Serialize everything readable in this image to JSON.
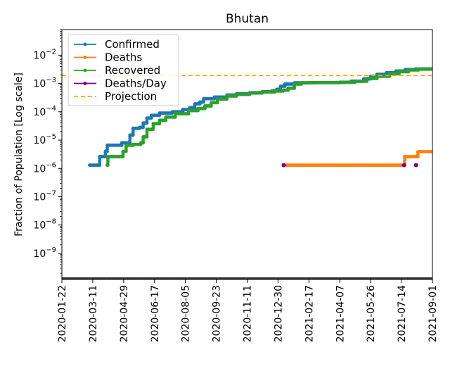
{
  "chart_data": {
    "type": "line",
    "title": "Bhutan",
    "ylabel": "Fraction of Population [Log scale]",
    "xlabel": "",
    "yscale": "log",
    "xlim": [
      "2020-01-22",
      "2021-09-01"
    ],
    "ylim": [
      1.2e-10,
      0.08
    ],
    "legend_position": "top-left",
    "x_ticks": [
      "2020-01-22",
      "2020-03-11",
      "2020-04-29",
      "2020-06-17",
      "2020-08-05",
      "2020-09-23",
      "2020-11-11",
      "2020-12-30",
      "2021-02-17",
      "2021-04-07",
      "2021-05-26",
      "2021-07-14",
      "2021-09-01"
    ],
    "y_ticks": [
      {
        "value": 1e-09,
        "base": "10",
        "exp": "−9"
      },
      {
        "value": 1e-08,
        "base": "10",
        "exp": "−8"
      },
      {
        "value": 1e-07,
        "base": "10",
        "exp": "−7"
      },
      {
        "value": 1e-06,
        "base": "10",
        "exp": "−6"
      },
      {
        "value": 1e-05,
        "base": "10",
        "exp": "−5"
      },
      {
        "value": 0.0001,
        "base": "10",
        "exp": "−4"
      },
      {
        "value": 0.001,
        "base": "10",
        "exp": "−3"
      },
      {
        "value": 0.01,
        "base": "10",
        "exp": "−2"
      }
    ],
    "series": [
      {
        "name": "Confirmed",
        "color": "#1f77b4",
        "points": [
          [
            "2020-03-06",
            1.3e-06
          ],
          [
            "2020-03-20",
            1.3e-06
          ],
          [
            "2020-03-22",
            2.6e-06
          ],
          [
            "2020-03-28",
            2.6e-06
          ],
          [
            "2020-03-31",
            4e-06
          ],
          [
            "2020-04-03",
            6.6e-06
          ],
          [
            "2020-04-23",
            6.6e-06
          ],
          [
            "2020-04-26",
            8e-06
          ],
          [
            "2020-05-05",
            8e-06
          ],
          [
            "2020-05-09",
            1.5e-05
          ],
          [
            "2020-05-14",
            2.6e-05
          ],
          [
            "2020-05-24",
            2.8e-05
          ],
          [
            "2020-05-30",
            4e-05
          ],
          [
            "2020-06-05",
            6e-05
          ],
          [
            "2020-06-12",
            7.5e-05
          ],
          [
            "2020-06-25",
            9e-05
          ],
          [
            "2020-07-15",
            0.0001
          ],
          [
            "2020-08-01",
            0.00012
          ],
          [
            "2020-08-12",
            0.00014
          ],
          [
            "2020-08-20",
            0.00019
          ],
          [
            "2020-08-28",
            0.00022
          ],
          [
            "2020-09-03",
            0.00029
          ],
          [
            "2020-09-20",
            0.00033
          ],
          [
            "2020-10-10",
            0.00039
          ],
          [
            "2020-10-25",
            0.00043
          ],
          [
            "2020-11-15",
            0.00047
          ],
          [
            "2020-12-05",
            0.00051
          ],
          [
            "2020-12-20",
            0.00055
          ],
          [
            "2020-12-28",
            0.00062
          ],
          [
            "2021-01-03",
            0.0008
          ],
          [
            "2021-01-10",
            0.00095
          ],
          [
            "2021-01-25",
            0.00105
          ],
          [
            "2021-02-20",
            0.00107
          ],
          [
            "2021-04-07",
            0.0011
          ],
          [
            "2021-04-25",
            0.0012
          ],
          [
            "2021-05-15",
            0.00145
          ],
          [
            "2021-05-26",
            0.0018
          ],
          [
            "2021-06-05",
            0.0021
          ],
          [
            "2021-06-20",
            0.0024
          ],
          [
            "2021-07-05",
            0.00275
          ],
          [
            "2021-07-20",
            0.0031
          ],
          [
            "2021-08-05",
            0.00325
          ],
          [
            "2021-09-01",
            0.00335
          ]
        ]
      },
      {
        "name": "Deaths",
        "color": "#ff7f0e",
        "points": [
          [
            "2021-01-08",
            1.3e-06
          ],
          [
            "2021-07-18",
            1.3e-06
          ],
          [
            "2021-07-19",
            2.6e-06
          ],
          [
            "2021-08-06",
            2.6e-06
          ],
          [
            "2021-08-09",
            3.9e-06
          ],
          [
            "2021-09-01",
            3.9e-06
          ]
        ]
      },
      {
        "name": "Recovered",
        "color": "#2ca02c",
        "points": [
          [
            "2020-04-03",
            1.3e-06
          ],
          [
            "2020-04-04",
            2.6e-06
          ],
          [
            "2020-04-25",
            2.6e-06
          ],
          [
            "2020-04-28",
            4e-06
          ],
          [
            "2020-05-03",
            6.6e-06
          ],
          [
            "2020-05-14",
            7e-06
          ],
          [
            "2020-05-26",
            8e-06
          ],
          [
            "2020-05-30",
            1.3e-05
          ],
          [
            "2020-06-05",
            2.4e-05
          ],
          [
            "2020-06-15",
            3.8e-05
          ],
          [
            "2020-06-25",
            5e-05
          ],
          [
            "2020-07-05",
            6.5e-05
          ],
          [
            "2020-07-20",
            8.5e-05
          ],
          [
            "2020-08-10",
            0.00011
          ],
          [
            "2020-08-25",
            0.00013
          ],
          [
            "2020-09-05",
            0.00016
          ],
          [
            "2020-09-15",
            0.00021
          ],
          [
            "2020-09-25",
            0.00028
          ],
          [
            "2020-10-10",
            0.00036
          ],
          [
            "2020-10-25",
            0.00041
          ],
          [
            "2020-11-15",
            0.00046
          ],
          [
            "2020-12-05",
            0.0005
          ],
          [
            "2020-12-25",
            0.00054
          ],
          [
            "2021-01-07",
            0.00058
          ],
          [
            "2021-01-15",
            0.00068
          ],
          [
            "2021-01-25",
            0.00095
          ],
          [
            "2021-02-05",
            0.00105
          ],
          [
            "2021-03-01",
            0.00108
          ],
          [
            "2021-04-15",
            0.0011
          ],
          [
            "2021-05-01",
            0.0012
          ],
          [
            "2021-05-20",
            0.0015
          ],
          [
            "2021-06-05",
            0.0018
          ],
          [
            "2021-06-25",
            0.0022
          ],
          [
            "2021-07-10",
            0.0026
          ],
          [
            "2021-07-25",
            0.003
          ],
          [
            "2021-08-10",
            0.0032
          ],
          [
            "2021-09-01",
            0.0033
          ]
        ]
      },
      {
        "name": "Deaths/Day",
        "color": "#800080",
        "points": [
          [
            "2021-01-08",
            1.3e-06
          ],
          [
            "2021-07-18",
            1.3e-06
          ],
          [
            "2021-08-06",
            1.3e-06
          ]
        ]
      }
    ],
    "projection": {
      "name": "Projection",
      "value": 0.0019,
      "color": "#ffa500"
    }
  }
}
